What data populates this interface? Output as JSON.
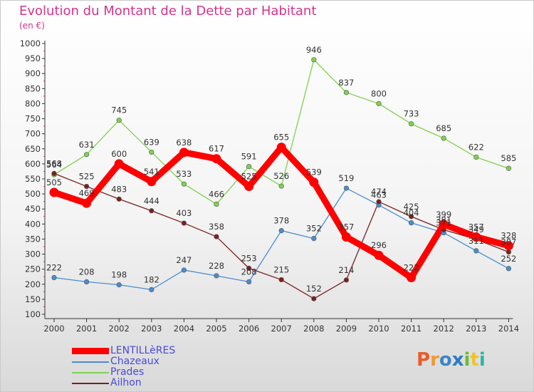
{
  "title": "Evolution du Montant de la Dette par Habitant",
  "unit": "(en €)",
  "logo": {
    "text": "Proxiti",
    "colors": [
      "#e85c2c",
      "#f29a2e",
      "#3a86c8",
      "#2b7bc4",
      "#6dbb3a",
      "#f2c12e",
      "#2bb5a8"
    ]
  },
  "chart_data": {
    "type": "line",
    "title": "Evolution du Montant de la Dette par Habitant",
    "ylabel": "(en €)",
    "categories": [
      "2000",
      "2001",
      "2002",
      "2003",
      "2004",
      "2005",
      "2006",
      "2007",
      "2008",
      "2009",
      "2010",
      "2011",
      "2012",
      "2013",
      "2014"
    ],
    "ylim": [
      100,
      1000
    ],
    "yticks": [
      "100",
      "150",
      "200",
      "250",
      "300",
      "350",
      "400",
      "450",
      "500",
      "550",
      "600",
      "650",
      "700",
      "750",
      "800",
      "850",
      "900",
      "950",
      "1000"
    ],
    "grid": false,
    "legend_position": "bottom-left",
    "series": [
      {
        "name": "LENTILLèRES",
        "color": "#ff0000",
        "values": [
          505,
          469,
          600,
          541,
          638,
          617,
          525,
          655,
          539,
          357,
          296,
          222,
          399,
          357,
          328
        ]
      },
      {
        "name": "Chazeaux",
        "color": "#4a8ccf",
        "values": [
          222,
          208,
          198,
          182,
          247,
          228,
          208,
          378,
          352,
          519,
          463,
          404,
          371,
          311,
          252
        ]
      },
      {
        "name": "Prades",
        "color": "#7ed14e",
        "values": [
          564,
          631,
          745,
          639,
          533,
          466,
          591,
          526,
          946,
          837,
          800,
          733,
          685,
          622,
          585
        ]
      },
      {
        "name": "Ailhon",
        "color": "#7a2020",
        "values": [
          568,
          525,
          483,
          444,
          403,
          358,
          253,
          215,
          152,
          214,
          474,
          425,
          381,
          349,
          307
        ]
      }
    ]
  }
}
